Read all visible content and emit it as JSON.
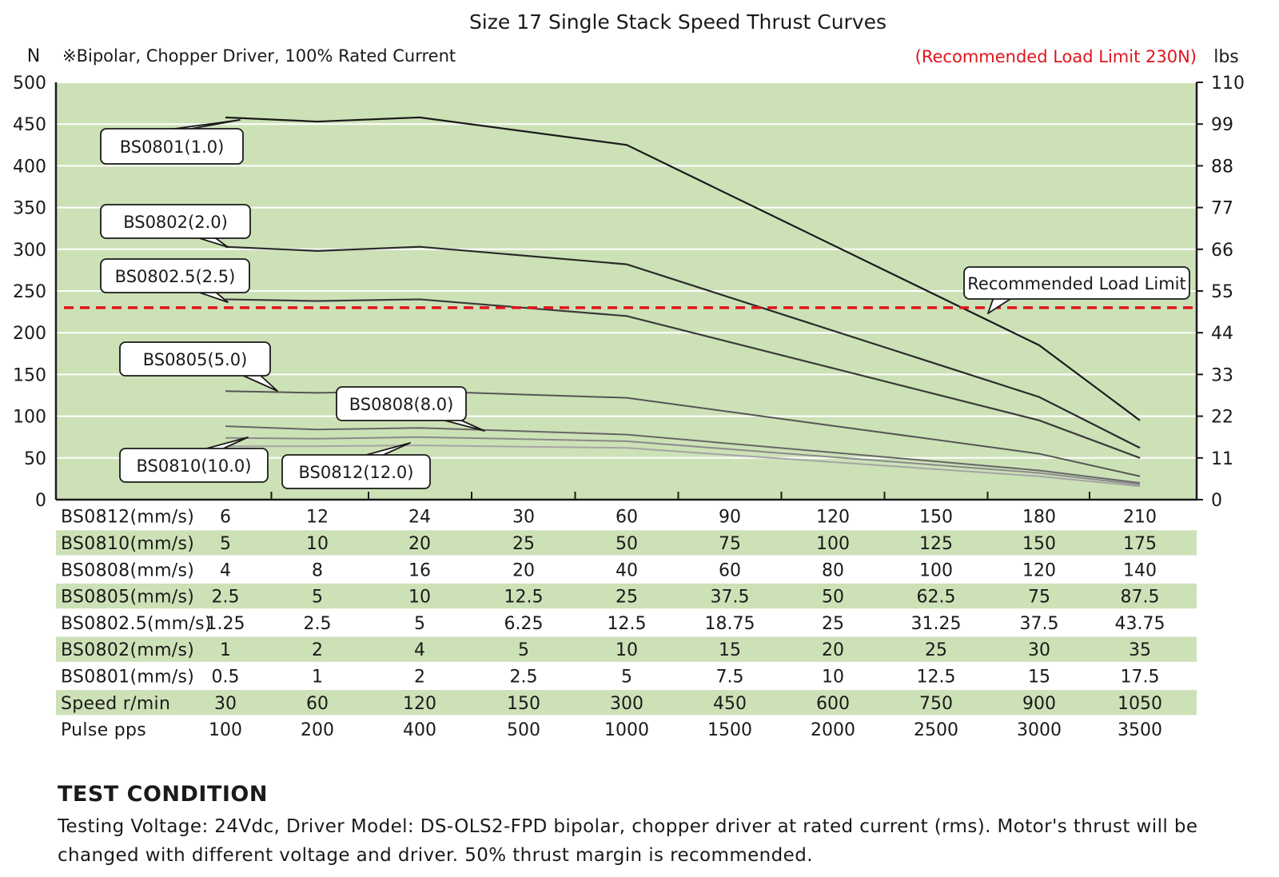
{
  "chart_data": {
    "type": "line",
    "title": "Size 17 Single Stack Speed Thrust Curves",
    "subtitle": "※Bipolar, Chopper Driver, 100% Rated Current",
    "limit_note": "(Recommended Load Limit 230N)",
    "y_left_unit": "N",
    "y_right_unit": "lbs",
    "ylim": [
      0,
      500
    ],
    "y_ticks": [
      "0",
      "50",
      "100",
      "150",
      "200",
      "250",
      "300",
      "350",
      "400",
      "450",
      "500"
    ],
    "y_right_ticks": [
      "0",
      "11",
      "22",
      "33",
      "44",
      "55",
      "66",
      "77",
      "88",
      "99",
      "110"
    ],
    "grid": "horizontal",
    "colors": {
      "plot_bg": "#cde1b7",
      "limit_line": "#e0141e",
      "limit_text": "#e0141e",
      "row_band": "#cde1b7"
    },
    "recommended_limit": {
      "value": 230,
      "label": "Recommended Load Limit"
    },
    "x_points": 10,
    "series": [
      {
        "name": "BS0801(1.0)",
        "color": "#1a1a1a",
        "values": [
          458,
          453,
          458,
          null,
          425,
          null,
          null,
          null,
          185,
          95
        ]
      },
      {
        "name": "BS0802(2.0)",
        "color": "#2a2a2a",
        "values": [
          303,
          298,
          303,
          null,
          282,
          null,
          null,
          null,
          123,
          62
        ]
      },
      {
        "name": "BS0802.5(2.5)",
        "color": "#3a3a3a",
        "values": [
          240,
          238,
          240,
          null,
          220,
          null,
          null,
          null,
          95,
          50
        ]
      },
      {
        "name": "BS0805(5.0)",
        "color": "#555555",
        "values": [
          130,
          128,
          130,
          null,
          122,
          null,
          null,
          null,
          55,
          28
        ]
      },
      {
        "name": "BS0808(8.0)",
        "color": "#666666",
        "values": [
          88,
          84,
          86,
          null,
          78,
          null,
          null,
          null,
          35,
          20
        ]
      },
      {
        "name": "BS0810(10.0)",
        "color": "#8a8a8a",
        "values": [
          74,
          73,
          75,
          null,
          70,
          null,
          null,
          null,
          32,
          18
        ]
      },
      {
        "name": "BS0812(12.0)",
        "color": "#a5a5a5",
        "values": [
          64,
          64,
          65,
          null,
          62,
          null,
          null,
          null,
          28,
          16
        ]
      }
    ],
    "table": {
      "rows": [
        {
          "label": "BS0812(mm/s)",
          "values": [
            "6",
            "12",
            "24",
            "30",
            "60",
            "90",
            "120",
            "150",
            "180",
            "210"
          ]
        },
        {
          "label": "BS0810(mm/s)",
          "values": [
            "5",
            "10",
            "20",
            "25",
            "50",
            "75",
            "100",
            "125",
            "150",
            "175"
          ]
        },
        {
          "label": "BS0808(mm/s)",
          "values": [
            "4",
            "8",
            "16",
            "20",
            "40",
            "60",
            "80",
            "100",
            "120",
            "140"
          ]
        },
        {
          "label": "BS0805(mm/s)",
          "values": [
            "2.5",
            "5",
            "10",
            "12.5",
            "25",
            "37.5",
            "50",
            "62.5",
            "75",
            "87.5"
          ]
        },
        {
          "label": "BS0802.5(mm/s)",
          "values": [
            "1.25",
            "2.5",
            "5",
            "6.25",
            "12.5",
            "18.75",
            "25",
            "31.25",
            "37.5",
            "43.75"
          ]
        },
        {
          "label": "BS0802(mm/s)",
          "values": [
            "1",
            "2",
            "4",
            "5",
            "10",
            "15",
            "20",
            "25",
            "30",
            "35"
          ]
        },
        {
          "label": "BS0801(mm/s)",
          "values": [
            "0.5",
            "1",
            "2",
            "2.5",
            "5",
            "7.5",
            "10",
            "12.5",
            "15",
            "17.5"
          ]
        },
        {
          "label": "Speed r/min",
          "values": [
            "30",
            "60",
            "120",
            "150",
            "300",
            "450",
            "600",
            "750",
            "900",
            "1050"
          ]
        },
        {
          "label": "Pulse  pps",
          "values": [
            "100",
            "200",
            "400",
            "500",
            "1000",
            "1500",
            "2000",
            "2500",
            "3000",
            "3500"
          ]
        }
      ]
    }
  },
  "test_condition": {
    "heading": "TEST CONDITION",
    "body": "Testing Voltage: 24Vdc, Driver Model: DS-OLS2-FPD bipolar, chopper driver at rated current (rms). Motor's thrust will be changed with different voltage and driver. 50% thrust margin is recommended."
  }
}
